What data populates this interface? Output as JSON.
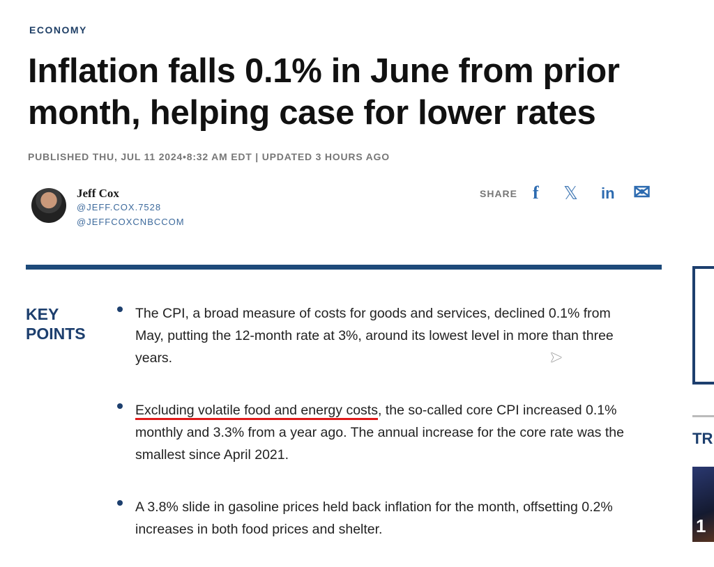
{
  "section": "ECONOMY",
  "title": "Inflation falls 0.1% in June from prior month, helping case for lower rates",
  "meta": "PUBLISHED THU, JUL 11 2024•8:32 AM EDT | UPDATED 3 HOURS AGO",
  "author": {
    "name": "Jeff Cox",
    "handle1": "@JEFF.COX.7528",
    "handle2": "@JEFFCOXCNBCCOM"
  },
  "share": {
    "label": "SHARE",
    "facebook": "f",
    "x": "𝕏",
    "linkedin": "in",
    "email": "✉"
  },
  "key_points": {
    "heading_1": "KEY",
    "heading_2": "POINTS",
    "items": [
      {
        "text": "The CPI, a broad measure of costs for goods and services, declined 0.1% from May, putting the 12-month rate at 3%, around its lowest level in more than three years."
      },
      {
        "underlined": "Excluding volatile food and energy costs",
        "text": ", the so-called core CPI increased 0.1% monthly and 3.3% from a year ago. The annual increase for the core rate was the smallest since April 2021."
      },
      {
        "text": "A 3.8% slide in gasoline prices held back inflation for the month, offsetting 0.2% increases in both food prices and shelter."
      }
    ]
  },
  "sidebar": {
    "trending_label": "TR",
    "thumb_number": "1"
  }
}
